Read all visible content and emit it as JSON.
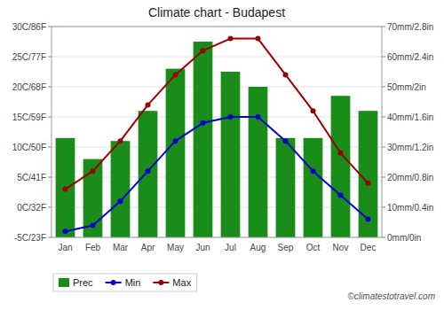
{
  "chart_data": {
    "type": "bar",
    "title": "Climate chart - Budapest",
    "categories": [
      "Jan",
      "Feb",
      "Mar",
      "Apr",
      "May",
      "Jun",
      "Jul",
      "Aug",
      "Sep",
      "Oct",
      "Nov",
      "Dec"
    ],
    "series": [
      {
        "name": "Prec",
        "type": "bar",
        "axis": "y2",
        "color": "#1a8c1a",
        "values": [
          33,
          26,
          32,
          42,
          56,
          65,
          55,
          50,
          33,
          33,
          47,
          42
        ]
      },
      {
        "name": "Min",
        "type": "line",
        "color": "#0000cc",
        "marker": "circle",
        "values": [
          -4,
          -3,
          1,
          6,
          11,
          14,
          15,
          15,
          11,
          6,
          2,
          -2
        ]
      },
      {
        "name": "Max",
        "type": "line",
        "color": "#990000",
        "marker": "circle",
        "values": [
          3,
          6,
          11,
          17,
          22,
          26,
          28,
          28,
          22,
          16,
          9,
          4
        ]
      }
    ],
    "ylim": [
      -5,
      30
    ],
    "yticks": [
      {
        "value": -5,
        "label": "-5C/23F"
      },
      {
        "value": 0,
        "label": "0C/32F"
      },
      {
        "value": 5,
        "label": "5C/41F"
      },
      {
        "value": 10,
        "label": "10C/50F"
      },
      {
        "value": 15,
        "label": "15C/59F"
      },
      {
        "value": 20,
        "label": "20C/68F"
      },
      {
        "value": 25,
        "label": "25C/77F"
      },
      {
        "value": 30,
        "label": "30C/86F"
      }
    ],
    "y2lim": [
      0,
      70
    ],
    "y2ticks": [
      {
        "value": 0,
        "label": "0mm/0in"
      },
      {
        "value": 10,
        "label": "10mm/0.4in"
      },
      {
        "value": 20,
        "label": "20mm/0.8in"
      },
      {
        "value": 30,
        "label": "30mm/1.2in"
      },
      {
        "value": 40,
        "label": "40mm/1.6in"
      },
      {
        "value": 50,
        "label": "50mm/2in"
      },
      {
        "value": 60,
        "label": "60mm/2.4in"
      },
      {
        "value": 70,
        "label": "70mm/2.8in"
      }
    ],
    "grid": true,
    "legend": "bottom",
    "annotations": [
      "©climatestotravel.com"
    ]
  }
}
